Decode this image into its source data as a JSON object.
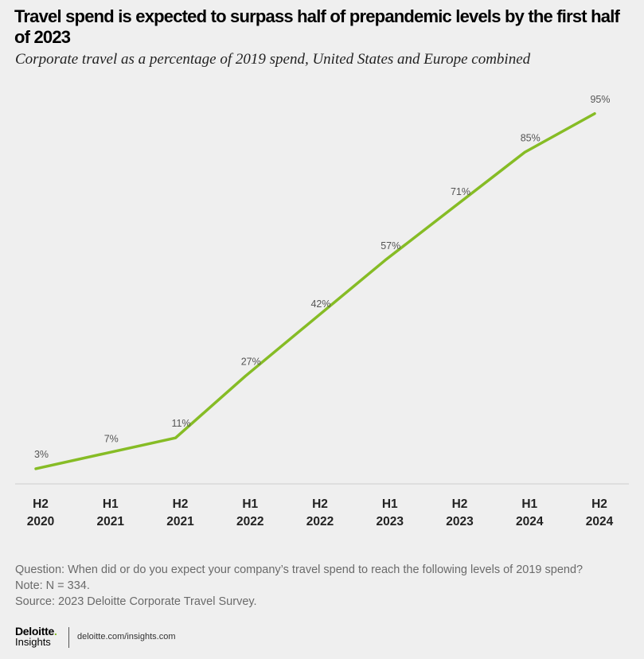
{
  "title": "Travel spend is expected to surpass half of prepandemic levels by the first half of 2023",
  "subtitle": "Corporate travel as a percentage of 2019 spend, United States and Europe combined",
  "chart_data": {
    "type": "line",
    "title": "Travel spend is expected to surpass half of prepandemic levels by the first half of 2023",
    "subtitle": "Corporate travel as a percentage of 2019 spend, United States and Europe combined",
    "categories": [
      [
        "H2",
        "2020"
      ],
      [
        "H1",
        "2021"
      ],
      [
        "H2",
        "2021"
      ],
      [
        "H1",
        "2022"
      ],
      [
        "H2",
        "2022"
      ],
      [
        "H1",
        "2023"
      ],
      [
        "H2",
        "2023"
      ],
      [
        "H1",
        "2024"
      ],
      [
        "H2",
        "2024"
      ]
    ],
    "values": [
      3,
      7,
      11,
      27,
      42,
      57,
      71,
      85,
      95
    ],
    "data_labels": [
      "3%",
      "7%",
      "11%",
      "27%",
      "42%",
      "57%",
      "71%",
      "85%",
      "95%"
    ],
    "xlabel": "",
    "ylabel": "",
    "ylim": [
      0,
      100
    ],
    "grid": false,
    "legend": "none",
    "line_color": "#86bc25"
  },
  "notes": {
    "question": "Question: When did or do you expect your company’s travel spend to reach the following levels of 2019 spend?",
    "note": "Note: N = 334.",
    "source": "Source: 2023 Deloitte Corporate Travel Survey."
  },
  "footer": {
    "brand": "Deloitte",
    "brand_dot": ".",
    "brand_sub": "Insights",
    "site": "deloitte.com/insights.com"
  }
}
